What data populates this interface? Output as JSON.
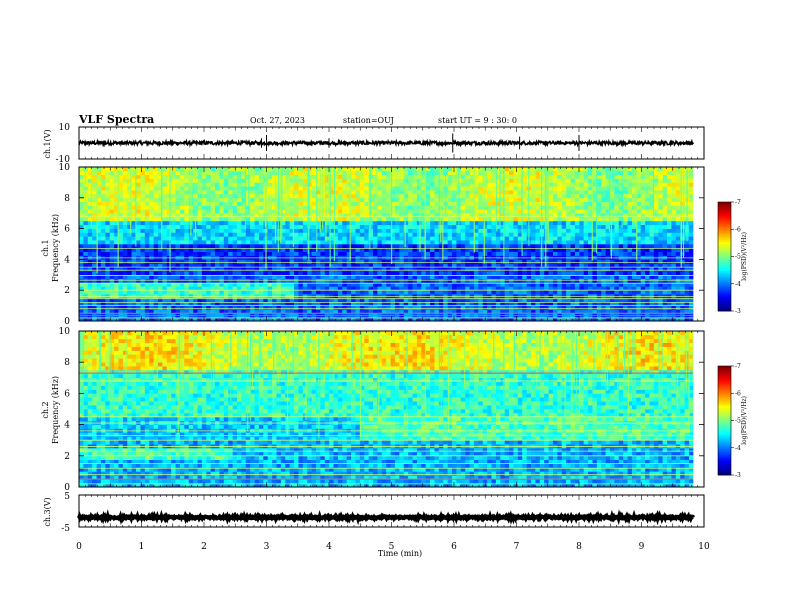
{
  "header": {
    "title": "VLF Spectra",
    "date": "Oct. 27, 2023",
    "station": "station=OUJ",
    "start_ut": "start UT =  9 : 30: 0"
  },
  "chart_data": [
    {
      "type": "line",
      "panel": "ch1-waveform",
      "ylabel": "ch.1(V)",
      "ylim": [
        -10,
        10
      ],
      "yticks": [
        "10",
        "-10"
      ],
      "xlim": [
        0,
        10
      ],
      "baseline": 0,
      "note_values": "noisy trace near 0 V with occasional spikes"
    },
    {
      "type": "heatmap",
      "panel": "ch1-spectrogram",
      "ylabel": "ch.1\nFrequency (kHz)",
      "ylim": [
        0,
        10
      ],
      "yticks": [
        "0",
        "2",
        "4",
        "6",
        "8",
        "10"
      ],
      "xlim": [
        0,
        10
      ],
      "data_end_min": 9.83,
      "colorbar": {
        "label": "log(PSD)(V²/Hz)",
        "range": [
          -7,
          -3
        ],
        "ticks": [
          "-3",
          "-4",
          "-5",
          "-6",
          "-7"
        ]
      },
      "horizontal_lines_khz": [
        0.2,
        0.35,
        0.5,
        0.8,
        1.0,
        1.2,
        1.45,
        1.6,
        2.0,
        2.45,
        2.65,
        2.95,
        3.3,
        3.5,
        3.8,
        4.1,
        4.7,
        6.8
      ],
      "red_lines_khz": [
        0.5,
        0.35
      ]
    },
    {
      "type": "heatmap",
      "panel": "ch2-spectrogram",
      "ylabel": "ch.2\nFrequency (kHz)",
      "ylim": [
        0,
        10
      ],
      "yticks": [
        "0",
        "2",
        "4",
        "6",
        "8",
        "10"
      ],
      "xlim": [
        0,
        10
      ],
      "data_end_min": 9.83,
      "colorbar": {
        "label": "log(PSD)(V²/Hz)",
        "range": [
          -7,
          -3
        ],
        "ticks": [
          "-3",
          "-4",
          "-5",
          "-6",
          "-7"
        ]
      },
      "horizontal_lines_khz": [
        0.2,
        0.5,
        0.8,
        1.2,
        1.5,
        2.0,
        2.3,
        2.6,
        3.0,
        3.3,
        3.6,
        4.1,
        4.5,
        6.8,
        7.3
      ],
      "red_lines_khz": [
        0.5,
        7.3
      ]
    },
    {
      "type": "line",
      "panel": "ch3-waveform",
      "ylabel": "ch.3(V)",
      "ylim": [
        -5,
        5
      ],
      "yticks": [
        "5",
        "-5"
      ],
      "xlim": [
        0,
        10
      ],
      "baseline": -2,
      "xlabel": "Time (min)",
      "xticks": [
        "0",
        "1",
        "2",
        "3",
        "4",
        "5",
        "6",
        "7",
        "8",
        "9",
        "10"
      ]
    }
  ]
}
